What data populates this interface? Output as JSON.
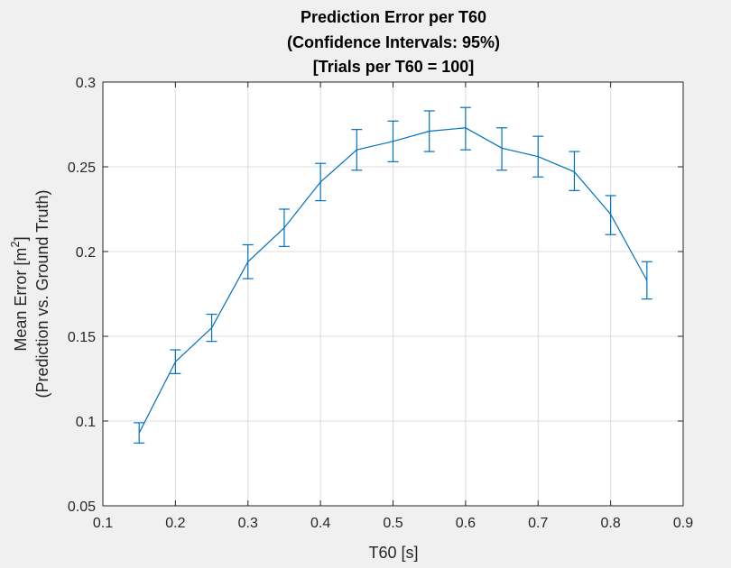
{
  "chart_data": {
    "type": "line",
    "title_lines": [
      "Prediction Error per T60",
      "(Confidence Intervals: 95%)",
      "[Trials per T60 = 100]"
    ],
    "xlabel": "T60 [s]",
    "ylabel_line1": "Mean Error [m",
    "ylabel_sup": "2",
    "ylabel_line1_end": "]",
    "ylabel_line2": "(Prediction vs. Ground Truth)",
    "xlim": [
      0.1,
      0.9
    ],
    "ylim": [
      0.05,
      0.3
    ],
    "xticks": [
      0.1,
      0.2,
      0.3,
      0.4,
      0.5,
      0.6,
      0.7,
      0.8,
      0.9
    ],
    "xtick_labels": [
      "0.1",
      "0.2",
      "0.3",
      "0.4",
      "0.5",
      "0.6",
      "0.7",
      "0.8",
      "0.9"
    ],
    "yticks": [
      0.05,
      0.1,
      0.15,
      0.2,
      0.25,
      0.3
    ],
    "ytick_labels": [
      "0.05",
      "0.1",
      "0.15",
      "0.2",
      "0.25",
      "0.3"
    ],
    "grid": true,
    "line_color": "#0072bd",
    "grid_color": "#dcdcdc",
    "x": [
      0.15,
      0.2,
      0.25,
      0.3,
      0.35,
      0.4,
      0.45,
      0.5,
      0.55,
      0.6,
      0.65,
      0.7,
      0.75,
      0.8,
      0.85
    ],
    "y": [
      0.093,
      0.135,
      0.155,
      0.194,
      0.214,
      0.241,
      0.26,
      0.265,
      0.271,
      0.273,
      0.261,
      0.256,
      0.247,
      0.222,
      0.183
    ],
    "y_lower": [
      0.087,
      0.128,
      0.147,
      0.184,
      0.203,
      0.23,
      0.248,
      0.253,
      0.259,
      0.26,
      0.248,
      0.244,
      0.236,
      0.21,
      0.172
    ],
    "y_upper": [
      0.099,
      0.142,
      0.163,
      0.204,
      0.225,
      0.252,
      0.272,
      0.277,
      0.283,
      0.285,
      0.273,
      0.268,
      0.259,
      0.233,
      0.194
    ]
  }
}
